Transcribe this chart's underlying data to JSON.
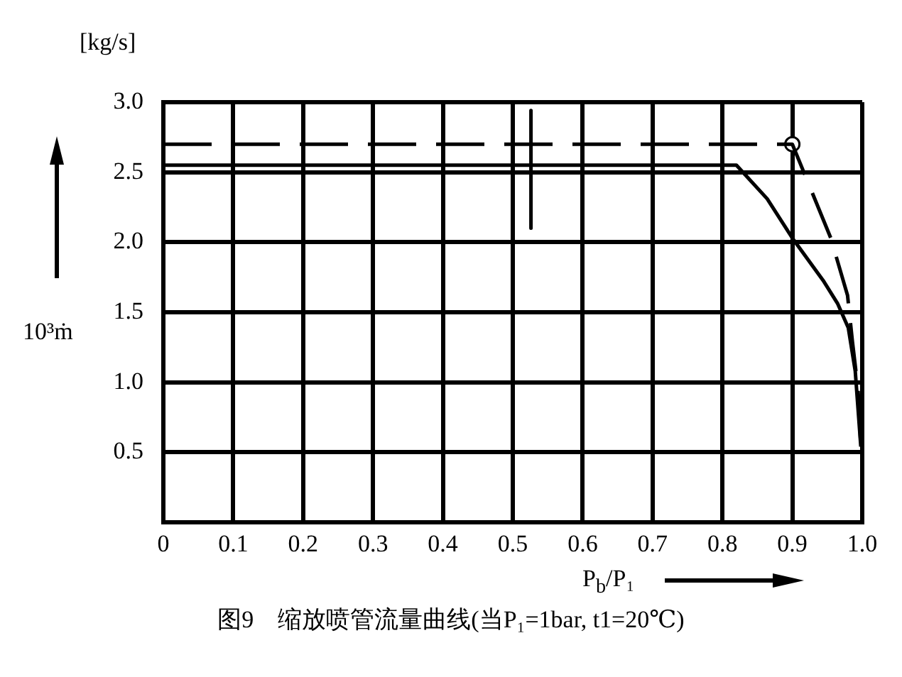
{
  "chart_data": {
    "type": "line",
    "title": "图9　缩放喷管流量曲线(当P₁=1bar, t1=20℃)",
    "xlabel": "P$_{b}$/P₁",
    "ylabel": "10³ṁ",
    "annotations": [
      "[kg/s]"
    ],
    "xlim": [
      0,
      1
    ],
    "ylim": [
      0,
      3
    ],
    "xticks": [
      {
        "value": 0,
        "label": "0"
      },
      0.1,
      0.2,
      0.3,
      0.4,
      0.5,
      0.6,
      0.7,
      0.8,
      0.9,
      {
        "value": 1,
        "label": "1.0"
      }
    ],
    "yticks": [
      0.5,
      {
        "value": 1,
        "label": "1.0"
      },
      1.5,
      {
        "value": 2,
        "label": "2.0"
      },
      2.5,
      {
        "value": 3,
        "label": "3.0"
      }
    ],
    "grid": true,
    "marker": "none",
    "series": [
      {
        "color": "#000000",
        "line_style": "dashed",
        "x": [
          0,
          0.9,
          0.955,
          0.979,
          0.986,
          0.994,
          0.998
        ],
        "values": [
          2.7,
          2.7,
          2.03,
          1.62,
          1.29,
          0.95,
          0.54
        ]
      },
      {
        "color": "#000000",
        "line_style": "solid",
        "x": [
          0,
          0.82,
          0.864,
          0.9,
          0.945,
          0.965,
          0.98,
          0.99,
          0.998
        ],
        "values": [
          2.55,
          2.55,
          2.31,
          2.03,
          1.72,
          1.56,
          1.39,
          1.08,
          0.54
        ]
      },
      {
        "color": "#000000",
        "line_style": "solid",
        "x": [
          0.526,
          0.526
        ],
        "values": [
          2.94,
          2.1
        ]
      },
      {
        "type": "scatter",
        "color": "#000000",
        "marker": "circle",
        "x": [
          0.9
        ],
        "values": [
          2.7
        ]
      }
    ]
  }
}
